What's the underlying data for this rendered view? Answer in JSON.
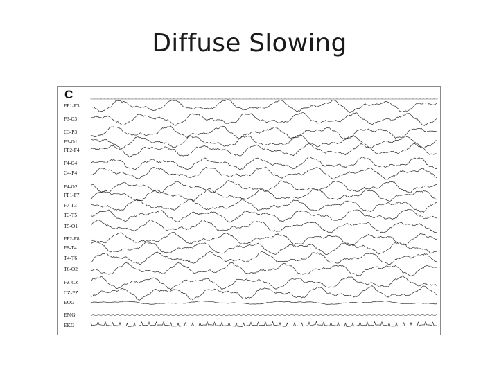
{
  "slide": {
    "title": "Diffuse Slowing"
  },
  "figure": {
    "panel_letter": "C",
    "channels": [
      "FP1-F3",
      "F3-C3",
      "C3-P3",
      "P3-O1",
      "FP2-F4",
      "F4-C4",
      "C4-P4",
      "P4-O2",
      "FP1-F7",
      "F7-T3",
      "T3-T5",
      "T5-O1",
      "FP2-F8",
      "F8-T4",
      "T4-T6",
      "T6-O2",
      "FZ-CZ",
      "CZ-PZ",
      "EOG",
      "EMG",
      "EKG"
    ]
  }
}
